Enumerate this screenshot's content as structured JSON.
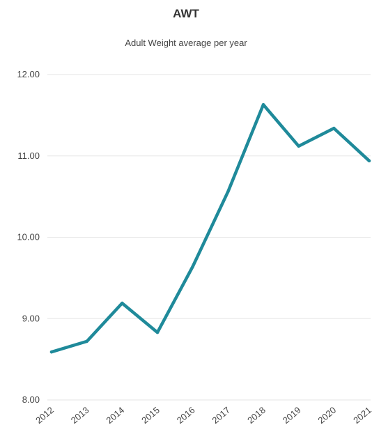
{
  "chart_data": {
    "type": "line",
    "title": "AWT",
    "subtitle": "Adult Weight average per year",
    "xlabel": "",
    "ylabel": "",
    "categories": [
      "2012",
      "2013",
      "2014",
      "2015",
      "2016",
      "2017",
      "2018",
      "2019",
      "2020",
      "2021"
    ],
    "series": [
      {
        "values": [
          8.59,
          8.72,
          9.19,
          8.83,
          9.64,
          10.56,
          11.63,
          11.12,
          11.34,
          10.94
        ]
      }
    ],
    "ylim": [
      8.0,
      12.0
    ],
    "yticks": [
      "12.00",
      "11.00",
      "10.00",
      "9.00",
      "8.00"
    ],
    "grid": true,
    "legend": "none",
    "colors": {
      "line": "#1f8a9a",
      "grid": "#e6e6e6"
    }
  }
}
